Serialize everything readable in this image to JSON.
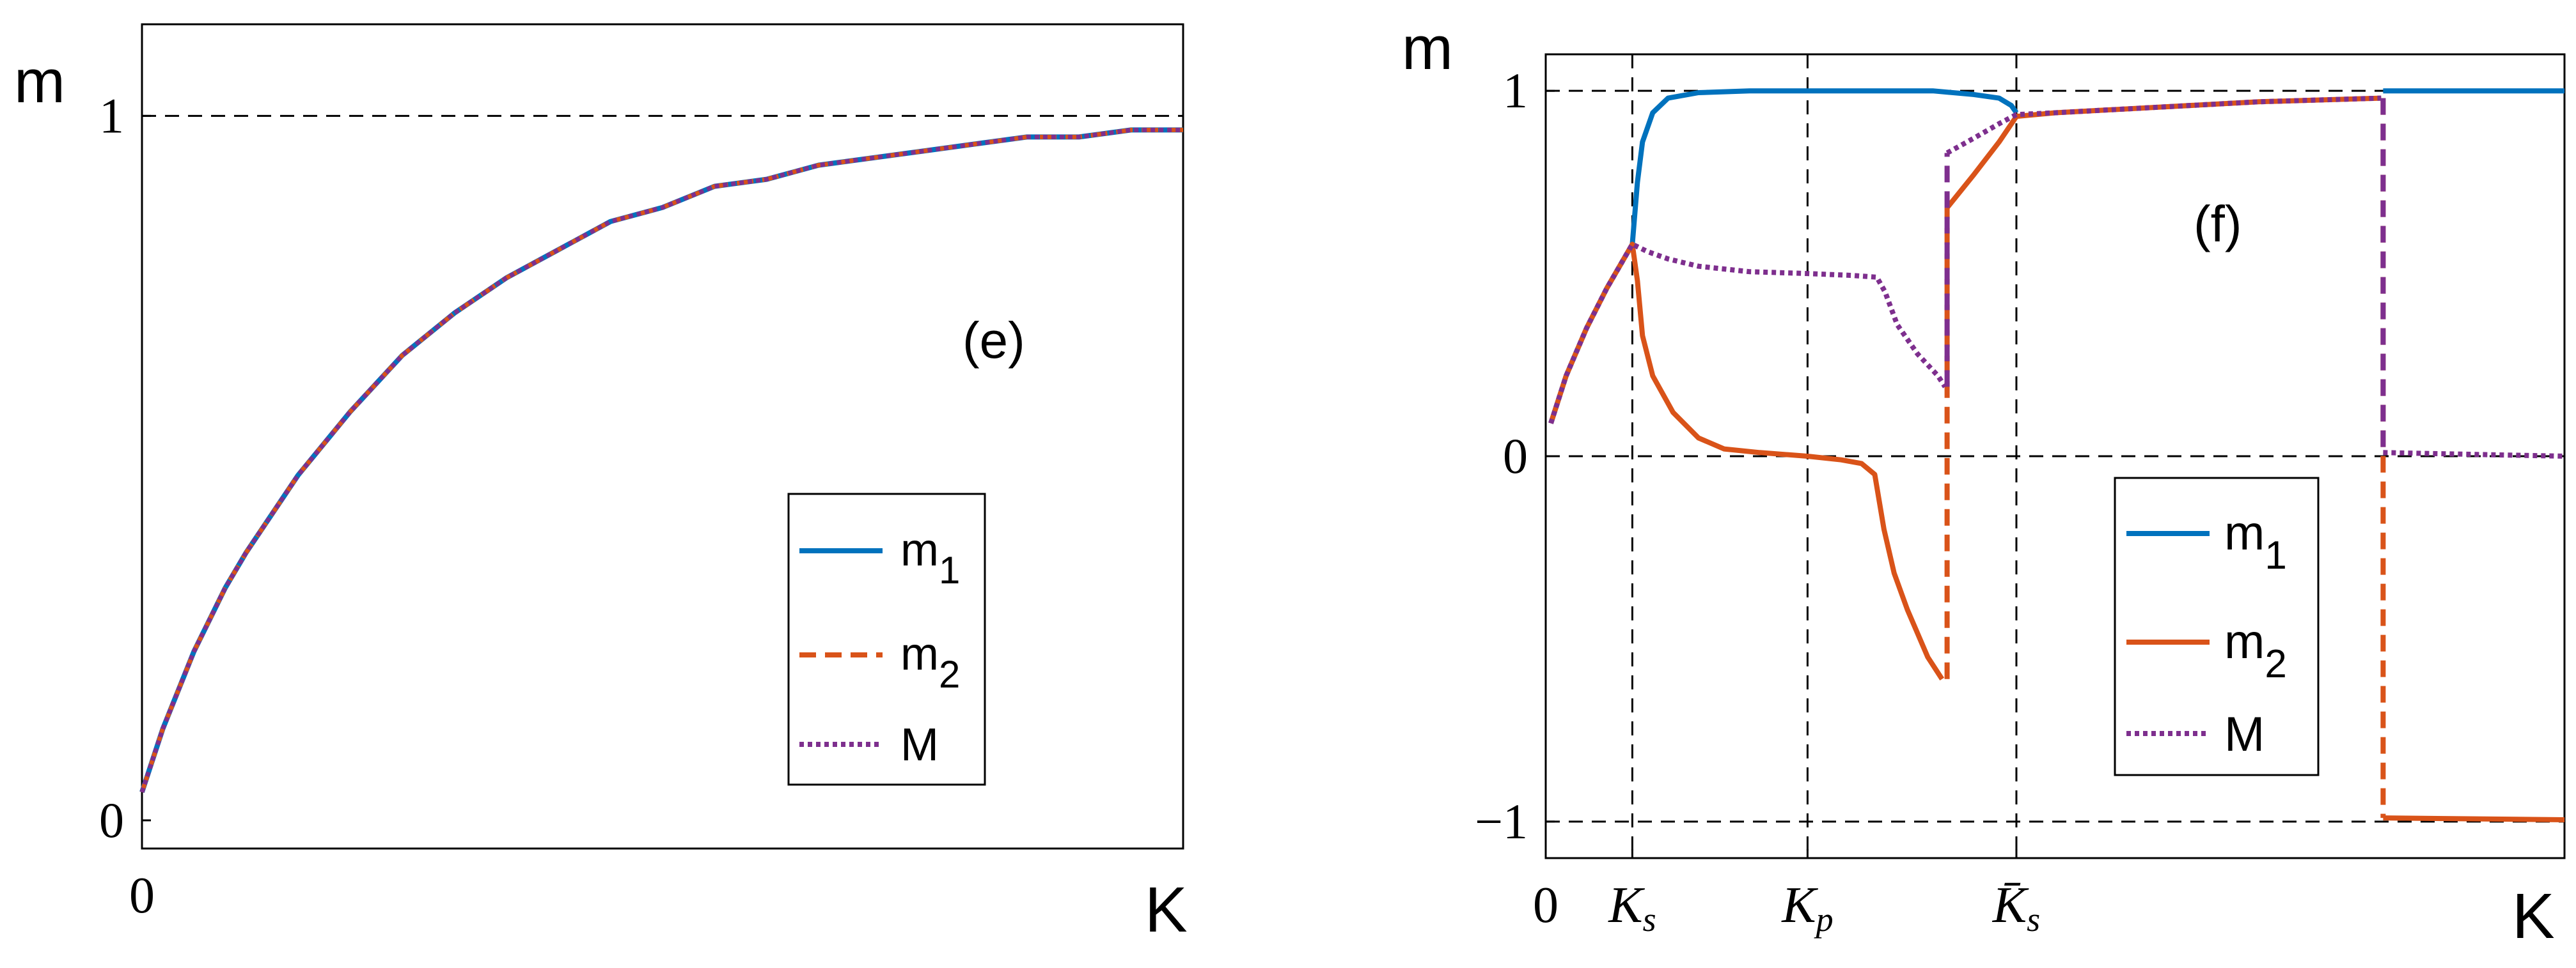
{
  "colors": {
    "m1": "#0072BD",
    "m2": "#D95319",
    "M": "#7E2F8E",
    "axis": "#000000",
    "background": "#ffffff"
  },
  "chart_data": [
    {
      "type": "line",
      "panel_label": "(e)",
      "ylabel": "m",
      "xlabel": "K",
      "xlim": [
        0,
        1
      ],
      "ylim": [
        -0.04,
        1.13
      ],
      "x_ticks": [
        {
          "value": 0,
          "label": "0"
        }
      ],
      "y_ticks": [
        {
          "value": 0,
          "label": "0"
        },
        {
          "value": 1,
          "label": "1"
        }
      ],
      "reference_lines": {
        "horizontal": [
          1
        ],
        "vertical": []
      },
      "legend": {
        "position": "lower-right",
        "entries": [
          {
            "key": "m1",
            "label": "m",
            "sub": "1",
            "style": "solid"
          },
          {
            "key": "m2",
            "label": "m",
            "sub": "2",
            "style": "dashed"
          },
          {
            "key": "M",
            "label": "M",
            "sub": "",
            "style": "dotted"
          }
        ]
      },
      "x": [
        0,
        0.02,
        0.05,
        0.08,
        0.1,
        0.15,
        0.2,
        0.25,
        0.3,
        0.35,
        0.4,
        0.45,
        0.5,
        0.55,
        0.6,
        0.65,
        0.7,
        0.75,
        0.8,
        0.85,
        0.9,
        0.95,
        1.0
      ],
      "series": [
        {
          "name": "m1",
          "style": "solid",
          "values": [
            0.04,
            0.13,
            0.24,
            0.33,
            0.38,
            0.49,
            0.58,
            0.66,
            0.72,
            0.77,
            0.81,
            0.85,
            0.87,
            0.9,
            0.91,
            0.93,
            0.94,
            0.95,
            0.96,
            0.97,
            0.97,
            0.98,
            0.98
          ]
        },
        {
          "name": "m2",
          "style": "dashed",
          "values": [
            0.04,
            0.13,
            0.24,
            0.33,
            0.38,
            0.49,
            0.58,
            0.66,
            0.72,
            0.77,
            0.81,
            0.85,
            0.87,
            0.9,
            0.91,
            0.93,
            0.94,
            0.95,
            0.96,
            0.97,
            0.97,
            0.98,
            0.98
          ]
        },
        {
          "name": "M",
          "style": "dotted",
          "values": [
            0.04,
            0.13,
            0.24,
            0.33,
            0.38,
            0.49,
            0.58,
            0.66,
            0.72,
            0.77,
            0.81,
            0.85,
            0.87,
            0.9,
            0.91,
            0.93,
            0.94,
            0.95,
            0.96,
            0.97,
            0.97,
            0.98,
            0.98
          ]
        }
      ]
    },
    {
      "type": "line",
      "panel_label": "(f)",
      "ylabel": "m",
      "xlabel": "K",
      "xlim": [
        0,
        100
      ],
      "ylim": [
        -1.1,
        1.1
      ],
      "x_ticks": [
        {
          "value": 0,
          "label": "0",
          "sub": ""
        },
        {
          "value": 8.5,
          "label": "K",
          "sub": "s"
        },
        {
          "value": 25.7,
          "label": "K",
          "sub": "p"
        },
        {
          "value": 46.2,
          "label": "K̄",
          "sub": "s"
        }
      ],
      "y_ticks": [
        {
          "value": -1,
          "label": "−1"
        },
        {
          "value": 0,
          "label": "0"
        },
        {
          "value": 1,
          "label": "1"
        }
      ],
      "reference_lines": {
        "horizontal": [
          1,
          0,
          -1
        ],
        "vertical": [
          8.5,
          25.7,
          46.2
        ]
      },
      "legend": {
        "position": "lower-center",
        "entries": [
          {
            "key": "m1",
            "label": "m",
            "sub": "1",
            "style": "solid"
          },
          {
            "key": "m2",
            "label": "m",
            "sub": "2",
            "style": "solid"
          },
          {
            "key": "M",
            "label": "M",
            "sub": "",
            "style": "dotted"
          }
        ]
      },
      "series": [
        {
          "name": "m1",
          "style": "solid",
          "points": [
            [
              0.5,
              0.09
            ],
            [
              2,
              0.22
            ],
            [
              4,
              0.35
            ],
            [
              6,
              0.46
            ],
            [
              8.5,
              0.58
            ],
            [
              9,
              0.75
            ],
            [
              9.5,
              0.86
            ],
            [
              10.5,
              0.94
            ],
            [
              12,
              0.98
            ],
            [
              15,
              0.995
            ],
            [
              20,
              1.0
            ],
            [
              30,
              1.0
            ],
            [
              38,
              1.0
            ],
            [
              42,
              0.99
            ],
            [
              44.5,
              0.98
            ],
            [
              45.7,
              0.96
            ],
            [
              46.2,
              0.94
            ]
          ]
        },
        {
          "name": "m1",
          "style": "solid",
          "points": [
            [
              82.2,
              1.0
            ],
            [
              100,
              1.0
            ]
          ]
        },
        {
          "name": "m2",
          "style": "solid",
          "points": [
            [
              0.5,
              0.09
            ],
            [
              2,
              0.22
            ],
            [
              4,
              0.35
            ],
            [
              6,
              0.46
            ],
            [
              8.5,
              0.58
            ],
            [
              9,
              0.48
            ],
            [
              9.5,
              0.33
            ],
            [
              10.5,
              0.22
            ],
            [
              12.5,
              0.12
            ],
            [
              15,
              0.05
            ],
            [
              17.5,
              0.02
            ],
            [
              21,
              0.01
            ],
            [
              25.7,
              0.0
            ],
            [
              29,
              -0.01
            ],
            [
              31,
              -0.02
            ],
            [
              32.3,
              -0.05
            ],
            [
              33.2,
              -0.2
            ],
            [
              34.2,
              -0.32
            ],
            [
              35.5,
              -0.42
            ],
            [
              37.5,
              -0.55
            ],
            [
              38.9,
              -0.61
            ]
          ]
        },
        {
          "name": "m2",
          "style": "dashed",
          "points": [
            [
              39.4,
              -0.61
            ],
            [
              39.4,
              0.68
            ]
          ]
        },
        {
          "name": "m2",
          "style": "solid",
          "points": [
            [
              39.4,
              0.68
            ],
            [
              42,
              0.77
            ],
            [
              44.5,
              0.86
            ],
            [
              46.2,
              0.93
            ],
            [
              50,
              0.94
            ],
            [
              60,
              0.955
            ],
            [
              70,
              0.97
            ],
            [
              82,
              0.98
            ]
          ]
        },
        {
          "name": "m2",
          "style": "dashed",
          "points": [
            [
              82.2,
              0.98
            ],
            [
              82.2,
              -0.99
            ]
          ]
        },
        {
          "name": "m2",
          "style": "solid",
          "points": [
            [
              82.2,
              -0.99
            ],
            [
              100,
              -0.995
            ]
          ]
        },
        {
          "name": "M",
          "style": "dotted",
          "points": [
            [
              0.5,
              0.09
            ],
            [
              2,
              0.22
            ],
            [
              4,
              0.35
            ],
            [
              6,
              0.46
            ],
            [
              8.5,
              0.58
            ],
            [
              10,
              0.56
            ],
            [
              12,
              0.54
            ],
            [
              15,
              0.52
            ],
            [
              20,
              0.505
            ],
            [
              25.7,
              0.5
            ],
            [
              30,
              0.495
            ],
            [
              32.5,
              0.49
            ],
            [
              33.3,
              0.45
            ],
            [
              34.5,
              0.36
            ],
            [
              36.5,
              0.28
            ],
            [
              38.5,
              0.22
            ],
            [
              39.2,
              0.19
            ]
          ]
        },
        {
          "name": "M",
          "style": "dashed",
          "points": [
            [
              39.4,
              0.19
            ],
            [
              39.4,
              0.83
            ]
          ]
        },
        {
          "name": "M",
          "style": "dotted",
          "points": [
            [
              39.4,
              0.83
            ],
            [
              42,
              0.87
            ],
            [
              44.5,
              0.91
            ],
            [
              46.2,
              0.935
            ],
            [
              50,
              0.94
            ],
            [
              60,
              0.955
            ],
            [
              70,
              0.97
            ],
            [
              82,
              0.98
            ]
          ]
        },
        {
          "name": "M",
          "style": "dashed",
          "points": [
            [
              82.2,
              0.98
            ],
            [
              82.2,
              0.01
            ]
          ]
        },
        {
          "name": "M",
          "style": "dotted",
          "points": [
            [
              82.2,
              0.01
            ],
            [
              100,
              0.0
            ]
          ]
        }
      ]
    }
  ]
}
